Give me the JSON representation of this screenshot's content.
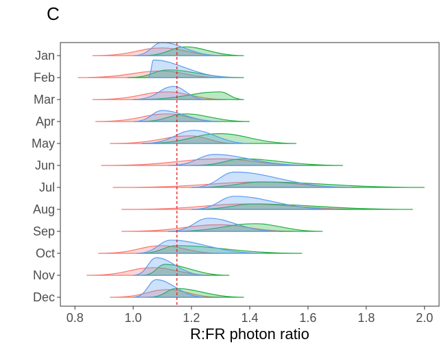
{
  "chart_data": {
    "type": "ridgeline",
    "panel_label": "C",
    "x_label": "R:FR photon ratio",
    "categories": [
      "Jan",
      "Feb",
      "Mar",
      "Apr",
      "May",
      "Jun",
      "Jul",
      "Aug",
      "Sep",
      "Oct",
      "Nov",
      "Dec"
    ],
    "xlim": [
      0.75,
      2.05
    ],
    "xticks": [
      0.8,
      {
        "value": 1,
        "label": "1.0"
      },
      1.2,
      1.4,
      1.6,
      1.8,
      {
        "value": 2,
        "label": "2.0"
      }
    ],
    "reference_line": {
      "value": 1.15,
      "color": "#e41a1c"
    },
    "series": [
      {
        "color": "#f8766d",
        "min": [
          0.86,
          0.81,
          0.86,
          0.87,
          0.92,
          0.89,
          0.93,
          0.96,
          0.96,
          0.88,
          0.84,
          0.92
        ],
        "mode": [
          1.1,
          1.1,
          1.12,
          1.12,
          1.2,
          1.3,
          1.45,
          1.4,
          1.3,
          1.1,
          1.07,
          1.12
        ],
        "max": [
          1.32,
          1.3,
          1.32,
          1.3,
          1.35,
          1.62,
          1.78,
          1.8,
          1.55,
          1.3,
          1.28,
          1.3
        ],
        "height": [
          0.35,
          0.3,
          0.35,
          0.35,
          0.35,
          0.3,
          0.25,
          0.25,
          0.3,
          0.35,
          0.35,
          0.35
        ]
      },
      {
        "color": "#1fae3f",
        "min": [
          1.03,
          0.98,
          1.0,
          1.02,
          1.03,
          1.2,
          1.2,
          1.2,
          1.12,
          1.02,
          1.03,
          1.05
        ],
        "mode": [
          1.18,
          1.12,
          1.3,
          1.18,
          1.3,
          1.38,
          1.45,
          1.42,
          1.42,
          1.15,
          1.11,
          1.15
        ],
        "max": [
          1.38,
          1.38,
          1.38,
          1.4,
          1.56,
          1.72,
          2.0,
          1.96,
          1.65,
          1.58,
          1.33,
          1.38
        ],
        "height": [
          0.4,
          0.35,
          0.35,
          0.35,
          0.45,
          0.3,
          0.25,
          0.25,
          0.35,
          0.35,
          0.5,
          0.4
        ]
      },
      {
        "color": "#5b9bf0",
        "min": [
          1.0,
          1.05,
          1.0,
          1.0,
          1.03,
          1.12,
          1.2,
          1.2,
          1.12,
          1.01,
          1.0,
          1.0
        ],
        "mode": [
          1.1,
          1.07,
          1.14,
          1.1,
          1.21,
          1.28,
          1.35,
          1.35,
          1.26,
          1.13,
          1.08,
          1.08
        ],
        "max": [
          1.3,
          1.35,
          1.25,
          1.3,
          1.4,
          1.6,
          1.75,
          1.7,
          1.5,
          1.45,
          1.25,
          1.25
        ],
        "height": [
          0.6,
          0.8,
          0.6,
          0.5,
          0.6,
          0.5,
          0.7,
          0.6,
          0.6,
          0.6,
          0.8,
          0.8
        ]
      }
    ]
  }
}
